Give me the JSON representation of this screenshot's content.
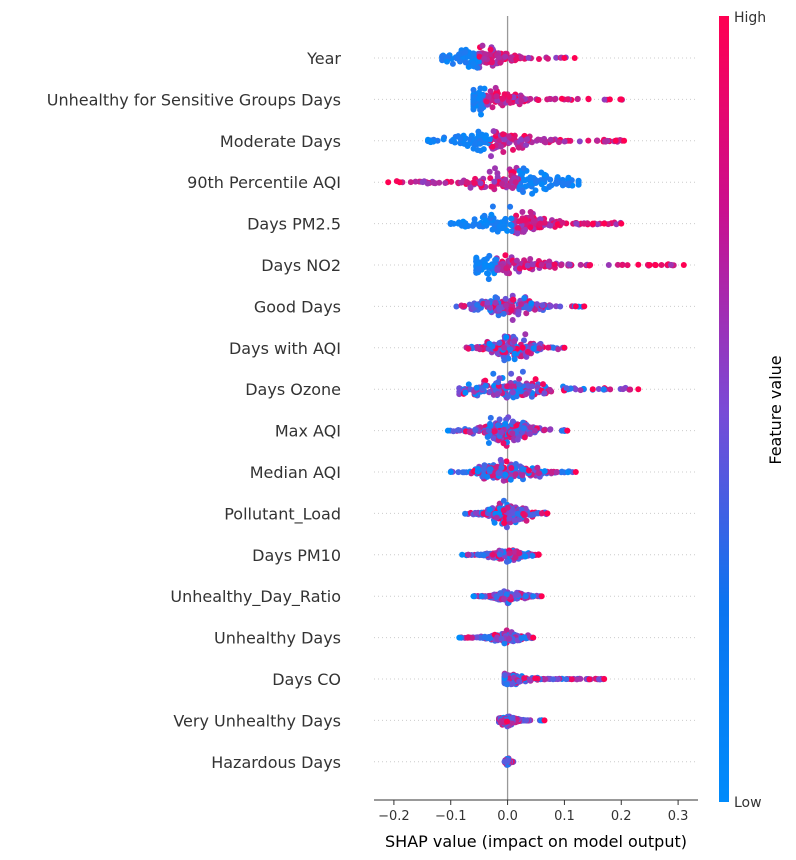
{
  "chart_data": {
    "type": "scatter",
    "subtype": "shap-beeswarm",
    "xlabel": "SHAP value (impact on model output)",
    "xlim": [
      -0.235,
      0.335
    ],
    "xticks": [
      -0.2,
      -0.1,
      0.0,
      0.1,
      0.2,
      0.3
    ],
    "xtick_labels": [
      "−0.2",
      "−0.1",
      "0.0",
      "0.1",
      "0.2",
      "0.3"
    ],
    "colorbar": {
      "title": "Feature value",
      "high_label": "High",
      "low_label": "Low",
      "low_color": "#008bfb",
      "high_color": "#ff0052"
    },
    "features": [
      {
        "name": "Year",
        "range": [
          -0.115,
          0.12
        ],
        "center": -0.05,
        "lowSide": "neg",
        "spread": 10,
        "outliers": [
          0.1,
          0.118
        ]
      },
      {
        "name": "Unhealthy for Sensitive Groups Days",
        "range": [
          -0.06,
          0.205
        ],
        "center": -0.04,
        "lowSide": "neg",
        "spread": 9,
        "outliers": [
          0.18,
          0.2
        ]
      },
      {
        "name": "Moderate Days",
        "range": [
          -0.14,
          0.205
        ],
        "center": -0.03,
        "lowSide": "neg",
        "spread": 11,
        "outliers": [
          0.19,
          0.205
        ]
      },
      {
        "name": "90th Percentile AQI",
        "range": [
          -0.21,
          0.125
        ],
        "center": 0.02,
        "lowSide": "pos",
        "spread": 12,
        "outliers": [
          -0.21,
          -0.19
        ]
      },
      {
        "name": "Days PM2.5",
        "range": [
          -0.1,
          0.2
        ],
        "center": 0.01,
        "lowSide": "neg",
        "spread": 12,
        "outliers": [
          0.15,
          0.17,
          0.2
        ]
      },
      {
        "name": "Days NO2",
        "range": [
          -0.055,
          0.31
        ],
        "center": -0.02,
        "lowSide": "neg",
        "spread": 9,
        "outliers": [
          0.25,
          0.26,
          0.31
        ]
      },
      {
        "name": "Good Days",
        "range": [
          -0.09,
          0.135
        ],
        "center": 0.0,
        "lowSide": "mix",
        "spread": 11,
        "outliers": [
          0.12,
          0.135
        ]
      },
      {
        "name": "Days with AQI",
        "range": [
          -0.075,
          0.1
        ],
        "center": 0.01,
        "lowSide": "mix",
        "spread": 12,
        "outliers": [
          0.1
        ]
      },
      {
        "name": "Days Ozone",
        "range": [
          -0.085,
          0.23
        ],
        "center": 0.0,
        "lowSide": "mix",
        "spread": 12,
        "outliers": [
          0.15,
          0.23
        ]
      },
      {
        "name": "Max AQI",
        "range": [
          -0.105,
          0.105
        ],
        "center": 0.0,
        "lowSide": "mix",
        "spread": 12,
        "outliers": [
          -0.105,
          0.105
        ]
      },
      {
        "name": "Median AQI",
        "range": [
          -0.1,
          0.12
        ],
        "center": 0.0,
        "lowSide": "mix",
        "spread": 10,
        "outliers": [
          -0.1,
          0.12
        ]
      },
      {
        "name": "Pollutant_Load",
        "range": [
          -0.075,
          0.07
        ],
        "center": 0.0,
        "lowSide": "mix",
        "spread": 11,
        "outliers": [
          0.07
        ]
      },
      {
        "name": "Days PM10",
        "range": [
          -0.08,
          0.055
        ],
        "center": 0.0,
        "lowSide": "mix",
        "spread": 5,
        "outliers": [
          -0.08,
          0.055
        ]
      },
      {
        "name": "Unhealthy_Day_Ratio",
        "range": [
          -0.06,
          0.06
        ],
        "center": 0.0,
        "lowSide": "mix",
        "spread": 5,
        "outliers": [
          -0.06,
          0.06
        ]
      },
      {
        "name": "Unhealthy Days",
        "range": [
          -0.085,
          0.045
        ],
        "center": 0.0,
        "lowSide": "mix",
        "spread": 5,
        "outliers": [
          -0.085,
          0.045
        ]
      },
      {
        "name": "Days CO",
        "range": [
          -0.005,
          0.17
        ],
        "center": 0.0,
        "lowSide": "mix",
        "spread": 5,
        "outliers": [
          0.17
        ]
      },
      {
        "name": "Very Unhealthy Days",
        "range": [
          -0.015,
          0.065
        ],
        "center": 0.0,
        "lowSide": "mix",
        "spread": 4,
        "outliers": [
          0.065
        ]
      },
      {
        "name": "Hazardous Days",
        "range": [
          -0.005,
          0.01
        ],
        "center": 0.0,
        "lowSide": "mix",
        "spread": 3,
        "outliers": []
      }
    ]
  }
}
